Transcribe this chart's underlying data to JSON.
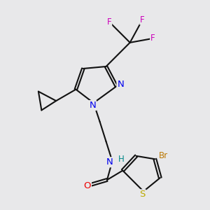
{
  "bg_color": "#e8e8ea",
  "bond_color": "#111111",
  "bond_width": 1.5,
  "atom_colors": {
    "N": "#0000ee",
    "O": "#ee0000",
    "S": "#bbaa00",
    "Br": "#bb7700",
    "F": "#cc00bb",
    "C": "#111111",
    "H": "#008888"
  },
  "font_size": 8.5,
  "fig_size": [
    3.0,
    3.0
  ],
  "dpi": 100
}
